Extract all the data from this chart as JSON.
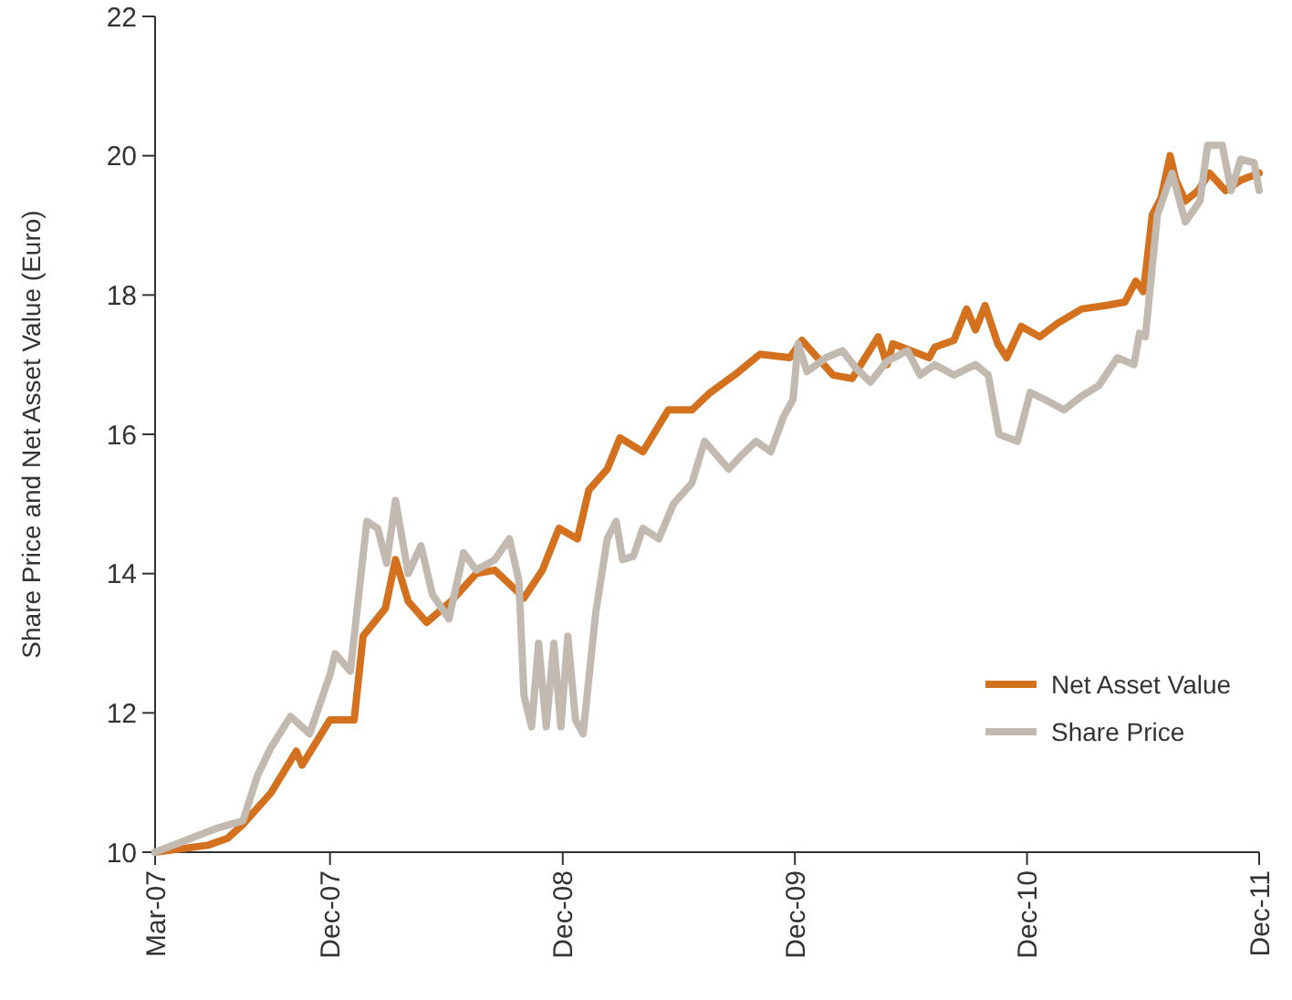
{
  "chart_data": {
    "type": "line",
    "ylabel": "Share Price and Net Asset Value (Euro)",
    "xlim": [
      "2007-03-01",
      "2011-12-01"
    ],
    "xticks": [
      {
        "value": "2007-03-01",
        "label": "Mar-07"
      },
      {
        "value": "2007-12-01",
        "label": "Dec-07"
      },
      {
        "value": "2008-12-01",
        "label": "Dec-08"
      },
      {
        "value": "2009-12-01",
        "label": "Dec-09"
      },
      {
        "value": "2010-12-01",
        "label": "Dec-10"
      },
      {
        "value": "2011-12-01",
        "label": "Dec-11"
      }
    ],
    "ylim": [
      10,
      22
    ],
    "yticks": [
      10,
      12,
      14,
      16,
      18,
      20,
      22
    ],
    "grid": false,
    "legend": "bottom right",
    "line_style": "solid",
    "marker": "none",
    "series": [
      {
        "name": "Net Asset Value",
        "color": "#d4711f",
        "x": [
          "2007-03-01",
          "2007-05-23",
          "2007-06-23",
          "2007-07-17",
          "2007-08-30",
          "2007-10-09",
          "2007-10-18",
          "2007-12-01",
          "2008-01-08",
          "2008-01-22",
          "2008-02-26",
          "2008-03-13",
          "2008-04-02",
          "2008-05-01",
          "2008-06-08",
          "2008-07-18",
          "2008-08-16",
          "2008-09-14",
          "2008-10-01",
          "2008-10-30",
          "2008-11-25",
          "2008-12-24",
          "2009-01-11",
          "2009-02-09",
          "2009-03-01",
          "2009-04-06",
          "2009-05-16",
          "2009-06-22",
          "2009-07-21",
          "2009-08-28",
          "2009-10-07",
          "2009-11-23",
          "2009-12-12",
          "2010-01-30",
          "2010-03-01",
          "2010-04-11",
          "2010-04-25",
          "2010-05-04",
          "2010-06-02",
          "2010-06-30",
          "2010-07-09",
          "2010-08-08",
          "2010-08-28",
          "2010-09-11",
          "2010-09-26",
          "2010-10-16",
          "2010-10-30",
          "2010-11-22",
          "2010-12-21",
          "2011-01-19",
          "2011-02-25",
          "2011-04-05",
          "2011-05-04",
          "2011-05-21",
          "2011-06-02",
          "2011-06-16",
          "2011-06-30",
          "2011-07-14",
          "2011-07-23",
          "2011-08-07",
          "2011-08-27",
          "2011-09-14",
          "2011-10-09",
          "2011-11-02",
          "2011-12-01"
        ],
        "values": [
          10.0,
          10.1,
          10.2,
          10.4,
          10.85,
          11.45,
          11.25,
          11.9,
          11.9,
          13.1,
          13.5,
          14.2,
          13.6,
          13.3,
          13.6,
          14.0,
          14.05,
          13.8,
          13.65,
          14.05,
          14.65,
          14.5,
          15.2,
          15.5,
          15.95,
          15.75,
          16.35,
          16.35,
          16.6,
          16.85,
          17.15,
          17.1,
          17.35,
          16.85,
          16.8,
          17.4,
          17.0,
          17.3,
          17.2,
          17.1,
          17.25,
          17.35,
          17.8,
          17.5,
          17.85,
          17.3,
          17.1,
          17.55,
          17.4,
          17.6,
          17.8,
          17.85,
          17.9,
          18.2,
          18.05,
          19.15,
          19.4,
          20.0,
          19.65,
          19.35,
          19.5,
          19.75,
          19.5,
          19.65,
          19.75
        ]
      },
      {
        "name": "Share Price",
        "color": "#c2b9b0",
        "x": [
          "2007-03-01",
          "2007-06-08",
          "2007-07-17",
          "2007-08-09",
          "2007-08-30",
          "2007-09-30",
          "2007-10-30",
          "2007-12-01",
          "2007-12-09",
          "2008-01-02",
          "2008-01-28",
          "2008-02-14",
          "2008-02-28",
          "2008-03-13",
          "2008-04-02",
          "2008-04-22",
          "2008-05-10",
          "2008-06-05",
          "2008-06-28",
          "2008-07-18",
          "2008-08-16",
          "2008-09-08",
          "2008-09-23",
          "2008-10-01",
          "2008-10-13",
          "2008-10-24",
          "2008-11-05",
          "2008-11-17",
          "2008-11-28",
          "2008-12-09",
          "2008-12-21",
          "2009-01-02",
          "2009-01-22",
          "2009-02-09",
          "2009-02-23",
          "2009-03-05",
          "2009-03-22",
          "2009-04-06",
          "2009-05-01",
          "2009-05-24",
          "2009-06-22",
          "2009-07-12",
          "2009-08-19",
          "2009-09-08",
          "2009-10-01",
          "2009-10-24",
          "2009-11-13",
          "2009-11-28",
          "2009-12-06",
          "2009-12-20",
          "2010-01-19",
          "2010-02-14",
          "2010-03-07",
          "2010-03-30",
          "2010-04-25",
          "2010-05-27",
          "2010-06-16",
          "2010-07-09",
          "2010-08-08",
          "2010-09-11",
          "2010-10-01",
          "2010-10-18",
          "2010-11-16",
          "2010-12-06",
          "2010-12-29",
          "2011-01-28",
          "2011-02-25",
          "2011-03-24",
          "2011-04-22",
          "2011-05-18",
          "2011-05-27",
          "2011-06-05",
          "2011-06-24",
          "2011-07-17",
          "2011-08-07",
          "2011-08-30",
          "2011-09-11",
          "2011-10-04",
          "2011-10-18",
          "2011-11-02",
          "2011-11-23",
          "2011-12-01"
        ],
        "values": [
          10.0,
          10.35,
          10.45,
          11.1,
          11.5,
          11.95,
          11.7,
          12.55,
          12.85,
          12.6,
          14.75,
          14.65,
          14.15,
          15.05,
          14.0,
          14.4,
          13.7,
          13.35,
          14.3,
          14.05,
          14.2,
          14.5,
          13.9,
          12.25,
          11.8,
          13.0,
          11.8,
          13.0,
          11.8,
          13.1,
          11.9,
          11.7,
          13.45,
          14.5,
          14.75,
          14.2,
          14.25,
          14.65,
          14.5,
          15.0,
          15.3,
          15.9,
          15.5,
          15.7,
          15.9,
          15.75,
          16.25,
          16.5,
          17.3,
          16.9,
          17.1,
          17.2,
          16.95,
          16.75,
          17.05,
          17.2,
          16.85,
          17.0,
          16.85,
          17.0,
          16.85,
          16.0,
          15.9,
          16.6,
          16.5,
          16.35,
          16.55,
          16.7,
          17.1,
          17.0,
          17.45,
          17.4,
          19.15,
          19.75,
          19.05,
          19.35,
          20.15,
          20.15,
          19.5,
          19.95,
          19.9,
          19.5
        ]
      }
    ]
  }
}
